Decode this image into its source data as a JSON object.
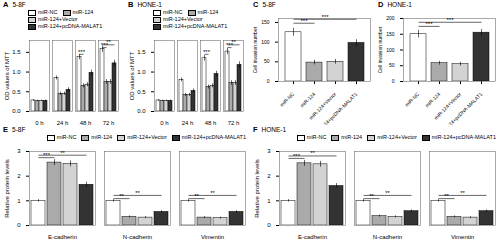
{
  "chart_data": [
    {
      "type": "bar",
      "title": "5-8F",
      "ylabel": "OD values of MTT",
      "categories": [
        "0 h",
        "24 h",
        "48 h",
        "72 h"
      ],
      "series": [
        {
          "name": "miR-NC",
          "color": "#ffffff",
          "values": [
            0.28,
            0.85,
            1.38,
            1.58
          ],
          "errors": [
            0.02,
            0.05,
            0.07,
            0.08
          ]
        },
        {
          "name": "miR-124",
          "color": "#aaaaaa",
          "values": [
            0.27,
            0.45,
            0.65,
            0.75
          ],
          "errors": [
            0.02,
            0.04,
            0.05,
            0.06
          ]
        },
        {
          "name": "miR-124+Vector",
          "color": "#d3d3d3",
          "values": [
            0.27,
            0.45,
            0.68,
            0.75
          ],
          "errors": [
            0.02,
            0.04,
            0.05,
            0.06
          ]
        },
        {
          "name": "miR-124+pcDNA-MALAT1",
          "color": "#333333",
          "values": [
            0.27,
            0.55,
            0.98,
            1.22
          ],
          "errors": [
            0.02,
            0.05,
            0.07,
            0.08
          ]
        }
      ],
      "ylim": [
        0.0,
        1.8
      ],
      "yticks": [
        {
          "value": 0,
          "label": "0.0"
        },
        0.5,
        {
          "value": 1,
          "label": "1.0"
        },
        1.5
      ],
      "grid": false,
      "legend": "upper left",
      "annotations": [
        {
          "text": "A"
        },
        {
          "text": "***",
          "category": "48 h",
          "from": "miR-NC",
          "to": "miR-124",
          "y": 1.45
        },
        {
          "text": "***",
          "category": "72 h",
          "from": "miR-NC",
          "to": "miR-124",
          "y": 1.62
        },
        {
          "text": "**",
          "category": "72 h",
          "from": "miR-NC",
          "to": "miR-124+pcDNA-MALAT1",
          "y": 1.69
        }
      ]
    },
    {
      "type": "bar",
      "title": "HONE-1",
      "ylabel": "OD values of MTT",
      "categories": [
        "0 h",
        "24 h",
        "48 h",
        "72 h"
      ],
      "series": [
        {
          "name": "miR-NC",
          "color": "#ffffff",
          "values": [
            0.28,
            0.8,
            1.35,
            1.52
          ],
          "errors": [
            0.02,
            0.05,
            0.07,
            0.08
          ]
        },
        {
          "name": "miR-124",
          "color": "#aaaaaa",
          "values": [
            0.27,
            0.42,
            0.62,
            0.72
          ],
          "errors": [
            0.02,
            0.04,
            0.05,
            0.06
          ]
        },
        {
          "name": "miR-124+Vector",
          "color": "#d3d3d3",
          "values": [
            0.27,
            0.42,
            0.65,
            0.72
          ],
          "errors": [
            0.02,
            0.04,
            0.05,
            0.06
          ]
        },
        {
          "name": "miR-124+pcDNA-MALAT1",
          "color": "#333333",
          "values": [
            0.27,
            0.52,
            0.95,
            1.18
          ],
          "errors": [
            0.02,
            0.05,
            0.07,
            0.08
          ]
        }
      ],
      "ylim": [
        0.0,
        1.8
      ],
      "yticks": [
        {
          "value": 0,
          "label": "0.0"
        },
        0.5,
        {
          "value": 1,
          "label": "1.0"
        },
        1.5
      ],
      "grid": false,
      "legend": "upper left",
      "annotations": [
        {
          "text": "B"
        },
        {
          "text": "***",
          "category": "48 h",
          "from": "miR-NC",
          "to": "miR-124",
          "y": 1.45
        },
        {
          "text": "***",
          "category": "72 h",
          "from": "miR-NC",
          "to": "miR-124",
          "y": 1.62
        },
        {
          "text": "**",
          "category": "72 h",
          "from": "miR-NC",
          "to": "miR-124+pcDNA-MALAT1",
          "y": 1.69
        }
      ]
    },
    {
      "type": "bar",
      "title": "5-8F",
      "ylabel": "Cell invasion number",
      "categories": [
        "miR-NC",
        "miR-124",
        "miR-124+Vector",
        "miR-124+pcDNA-MALAT1"
      ],
      "values": [
        125,
        48,
        50,
        98
      ],
      "errors": [
        10,
        6,
        6,
        8
      ],
      "colors": [
        "#ffffff",
        "#aaaaaa",
        "#d3d3d3",
        "#333333"
      ],
      "ylim": [
        0,
        160
      ],
      "yticks": [
        0,
        50,
        100,
        150
      ],
      "grid": false,
      "annotations": [
        {
          "text": "C"
        },
        {
          "text": "***",
          "from": "miR-NC",
          "to": "miR-124",
          "y": 148
        },
        {
          "text": "***",
          "from": "miR-NC",
          "to": "miR-124+pcDNA-MALAT1",
          "y": 158
        }
      ]
    },
    {
      "type": "bar",
      "title": "HONE-1",
      "ylabel": "Cell invasion number",
      "categories": [
        "miR-NC",
        "miR-124",
        "miR-124+Vector",
        "miR-124+pcDNA-MALAT1"
      ],
      "values": [
        150,
        58,
        55,
        155
      ],
      "errors": [
        12,
        6,
        6,
        10
      ],
      "colors": [
        "#ffffff",
        "#aaaaaa",
        "#d3d3d3",
        "#333333"
      ],
      "ylim": [
        0,
        200
      ],
      "yticks": [
        0,
        50,
        100,
        150,
        200
      ],
      "grid": false,
      "annotations": [
        {
          "text": "D"
        },
        {
          "text": "***",
          "from": "miR-NC",
          "to": "miR-124",
          "y": 175
        },
        {
          "text": "***",
          "from": "miR-NC",
          "to": "miR-124+pcDNA-MALAT1",
          "y": 188
        }
      ]
    },
    {
      "type": "bar",
      "title": "5-8F",
      "ylabel": "Relative protein levels",
      "categories": [
        "E-cadherin",
        "N-cadherin",
        "Vimentin"
      ],
      "series": [
        {
          "name": "miR-NC",
          "color": "#ffffff",
          "values": [
            1.0,
            1.0,
            1.0
          ],
          "errors": [
            0.05,
            0.05,
            0.05
          ]
        },
        {
          "name": "miR-124",
          "color": "#aaaaaa",
          "values": [
            2.55,
            0.35,
            0.32
          ],
          "errors": [
            0.12,
            0.04,
            0.04
          ]
        },
        {
          "name": "miR-124+Vector",
          "color": "#d3d3d3",
          "values": [
            2.5,
            0.32,
            0.3
          ],
          "errors": [
            0.12,
            0.04,
            0.04
          ]
        },
        {
          "name": "miR-124+pcDNA-MALAT1",
          "color": "#333333",
          "values": [
            1.65,
            0.55,
            0.55
          ],
          "errors": [
            0.1,
            0.05,
            0.05
          ]
        }
      ],
      "ylim": [
        0,
        3.0
      ],
      "yticks": [
        0,
        1,
        2,
        3
      ],
      "grid": false,
      "legend": "upper right",
      "annotations": [
        {
          "text": "E"
        },
        {
          "text": "***",
          "category": "E-cadherin",
          "from": "miR-NC",
          "to": "miR-124",
          "y": 2.75
        },
        {
          "text": "**",
          "category": "E-cadherin",
          "from": "miR-NC",
          "to": "miR-124+pcDNA-MALAT1",
          "y": 2.85
        },
        {
          "text": "**",
          "category": "N-cadherin",
          "from": "miR-NC",
          "to": "miR-124",
          "y": 1.09
        },
        {
          "text": "**",
          "category": "N-cadherin",
          "from": "miR-NC",
          "to": "miR-124+pcDNA-MALAT1",
          "y": 1.22
        },
        {
          "text": "**",
          "category": "Vimentin",
          "from": "miR-NC",
          "to": "miR-124",
          "y": 1.09
        },
        {
          "text": "**",
          "category": "Vimentin",
          "from": "miR-NC",
          "to": "miR-124+pcDNA-MALAT1",
          "y": 1.22
        }
      ]
    },
    {
      "type": "bar",
      "title": "HONE-1",
      "ylabel": "Relative protein levels",
      "categories": [
        "E-cadherin",
        "N-cadherin",
        "Vimentin"
      ],
      "series": [
        {
          "name": "miR-NC",
          "color": "#ffffff",
          "values": [
            1.0,
            1.0,
            1.0
          ],
          "errors": [
            0.05,
            0.05,
            0.05
          ]
        },
        {
          "name": "miR-124",
          "color": "#aaaaaa",
          "values": [
            2.52,
            0.38,
            0.35
          ],
          "errors": [
            0.12,
            0.04,
            0.04
          ]
        },
        {
          "name": "miR-124+Vector",
          "color": "#d3d3d3",
          "values": [
            2.48,
            0.35,
            0.32
          ],
          "errors": [
            0.12,
            0.04,
            0.04
          ]
        },
        {
          "name": "miR-124+pcDNA-MALAT1",
          "color": "#333333",
          "values": [
            1.6,
            0.58,
            0.58
          ],
          "errors": [
            0.1,
            0.05,
            0.05
          ]
        }
      ],
      "ylim": [
        0,
        3.0
      ],
      "yticks": [
        0,
        1,
        2,
        3
      ],
      "grid": false,
      "legend": "upper right",
      "annotations": [
        {
          "text": "F"
        },
        {
          "text": "***",
          "category": "E-cadherin",
          "from": "miR-NC",
          "to": "miR-124",
          "y": 2.72
        },
        {
          "text": "**",
          "category": "E-cadherin",
          "from": "miR-NC",
          "to": "miR-124+pcDNA-MALAT1",
          "y": 2.82
        },
        {
          "text": "**",
          "category": "N-cadherin",
          "from": "miR-NC",
          "to": "miR-124",
          "y": 1.09
        },
        {
          "text": "**",
          "category": "N-cadherin",
          "from": "miR-NC",
          "to": "miR-124+pcDNA-MALAT1",
          "y": 1.22
        },
        {
          "text": "**",
          "category": "Vimentin",
          "from": "miR-NC",
          "to": "miR-124",
          "y": 1.09
        },
        {
          "text": "**",
          "category": "Vimentin",
          "from": "miR-NC",
          "to": "miR-124+pcDNA-MALAT1",
          "y": 1.22
        }
      ]
    }
  ]
}
